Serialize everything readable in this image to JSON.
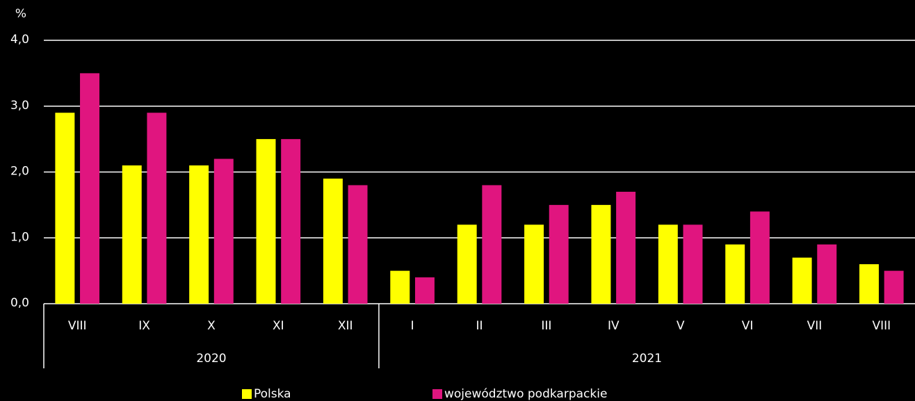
{
  "chart_data": {
    "type": "bar",
    "y_label": "%",
    "groups": [
      {
        "name": "2020",
        "categories": [
          "VIII",
          "IX",
          "X",
          "XI",
          "XII"
        ]
      },
      {
        "name": "2021",
        "categories": [
          "I",
          "II",
          "III",
          "IV",
          "V",
          "VI",
          "VII",
          "VIII"
        ]
      }
    ],
    "series": [
      {
        "name": "Polska",
        "color": "#ffff00",
        "values": [
          2.9,
          2.1,
          2.1,
          2.5,
          1.9,
          0.5,
          1.2,
          1.2,
          1.5,
          1.2,
          0.9,
          0.7,
          0.6
        ]
      },
      {
        "name": "województwo podkarpackie",
        "color": "#e0157f",
        "values": [
          3.5,
          2.9,
          2.2,
          2.5,
          1.8,
          0.4,
          1.8,
          1.5,
          1.7,
          1.2,
          1.4,
          0.9,
          0.5
        ]
      }
    ],
    "ylim": [
      0,
      4
    ],
    "yticks": [
      {
        "value": 0,
        "label": "0,0"
      },
      {
        "value": 1,
        "label": "1,0"
      },
      {
        "value": 2,
        "label": "2,0"
      },
      {
        "value": 3,
        "label": "3,0"
      },
      {
        "value": 4,
        "label": "4,0"
      }
    ],
    "grid": true,
    "legend": "bottom"
  }
}
